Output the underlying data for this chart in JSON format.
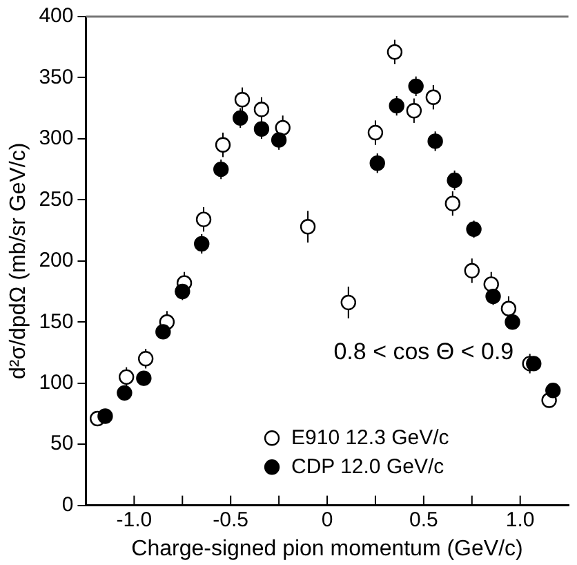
{
  "chart_data": {
    "type": "scatter",
    "xlabel": "Charge-signed pion momentum (GeV/c)",
    "ylabel": "d²σ/dpdΩ (mb/sr GeV/c)",
    "xlim": [
      -1.25,
      1.25
    ],
    "ylim": [
      0,
      400
    ],
    "xticks": [
      {
        "value": -1,
        "label": "-1.0"
      },
      {
        "value": -0.75,
        "label": null
      },
      {
        "value": -0.5,
        "label": "-0.5"
      },
      {
        "value": -0.25,
        "label": null
      },
      0,
      {
        "value": 0.25,
        "label": null
      },
      {
        "value": 0.5,
        "label": "0.5"
      },
      {
        "value": 0.75,
        "label": null
      },
      {
        "value": 1,
        "label": "1.0"
      }
    ],
    "yticks": [
      0,
      50,
      100,
      150,
      200,
      250,
      300,
      350,
      400
    ],
    "marker": "circle",
    "legend": "bottom",
    "grid": false,
    "annotations": [
      "0.8 < cos Θ < 0.9"
    ],
    "series": [
      {
        "name": "E910 12.3 GeV/c",
        "color": "#ffffff",
        "x": [
          -1.19,
          -1.04,
          -0.94,
          -0.83,
          -0.74,
          -0.64,
          -0.54,
          -0.44,
          -0.34,
          -0.23,
          -0.1,
          0.11,
          0.25,
          0.35,
          0.45,
          0.55,
          0.65,
          0.75,
          0.85,
          0.94,
          1.05,
          1.15
        ],
        "values": [
          71,
          105,
          120,
          150,
          182,
          234,
          295,
          332,
          324,
          309,
          228,
          166,
          305,
          371,
          323,
          334,
          247,
          192,
          181,
          161,
          116,
          86
        ],
        "errors": [
          6,
          8,
          8,
          9,
          9,
          10,
          10,
          10,
          10,
          10,
          13,
          13,
          10,
          10,
          10,
          10,
          10,
          10,
          10,
          10,
          8,
          6
        ]
      },
      {
        "name": "CDP 12.0 GeV/c",
        "color": "#000000",
        "x": [
          -1.15,
          -1.05,
          -0.95,
          -0.85,
          -0.75,
          -0.65,
          -0.55,
          -0.45,
          -0.34,
          -0.25,
          0.26,
          0.36,
          0.46,
          0.56,
          0.66,
          0.76,
          0.86,
          0.96,
          1.07,
          1.17
        ],
        "values": [
          73,
          92,
          104,
          142,
          175,
          214,
          275,
          317,
          308,
          299,
          280,
          327,
          343,
          298,
          266,
          226,
          171,
          150,
          116,
          94
        ],
        "errors": [
          5,
          5,
          6,
          6,
          7,
          8,
          8,
          8,
          8,
          8,
          8,
          8,
          8,
          8,
          8,
          7,
          7,
          6,
          5,
          5
        ]
      }
    ]
  }
}
